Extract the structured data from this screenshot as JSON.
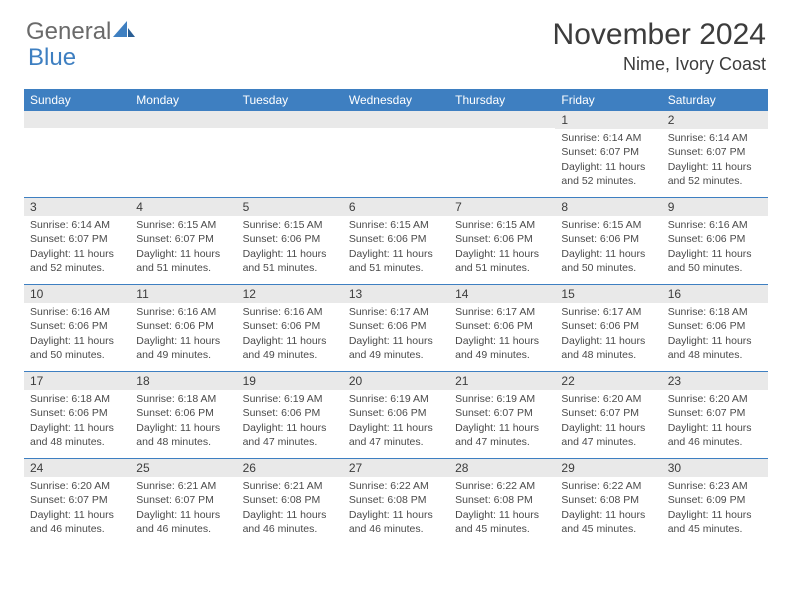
{
  "logo": {
    "text1": "General",
    "text2": "Blue"
  },
  "title": "November 2024",
  "location": "Nime, Ivory Coast",
  "colors": {
    "header_bg": "#3e7fc1",
    "stripe_bg": "#e9e9e9",
    "rule": "#3e7fc1",
    "text": "#4a4a4a"
  },
  "weekdays": [
    "Sunday",
    "Monday",
    "Tuesday",
    "Wednesday",
    "Thursday",
    "Friday",
    "Saturday"
  ],
  "weeks": [
    [
      {
        "n": "",
        "lines": []
      },
      {
        "n": "",
        "lines": []
      },
      {
        "n": "",
        "lines": []
      },
      {
        "n": "",
        "lines": []
      },
      {
        "n": "",
        "lines": []
      },
      {
        "n": "1",
        "lines": [
          "Sunrise: 6:14 AM",
          "Sunset: 6:07 PM",
          "Daylight: 11 hours and 52 minutes."
        ]
      },
      {
        "n": "2",
        "lines": [
          "Sunrise: 6:14 AM",
          "Sunset: 6:07 PM",
          "Daylight: 11 hours and 52 minutes."
        ]
      }
    ],
    [
      {
        "n": "3",
        "lines": [
          "Sunrise: 6:14 AM",
          "Sunset: 6:07 PM",
          "Daylight: 11 hours and 52 minutes."
        ]
      },
      {
        "n": "4",
        "lines": [
          "Sunrise: 6:15 AM",
          "Sunset: 6:07 PM",
          "Daylight: 11 hours and 51 minutes."
        ]
      },
      {
        "n": "5",
        "lines": [
          "Sunrise: 6:15 AM",
          "Sunset: 6:06 PM",
          "Daylight: 11 hours and 51 minutes."
        ]
      },
      {
        "n": "6",
        "lines": [
          "Sunrise: 6:15 AM",
          "Sunset: 6:06 PM",
          "Daylight: 11 hours and 51 minutes."
        ]
      },
      {
        "n": "7",
        "lines": [
          "Sunrise: 6:15 AM",
          "Sunset: 6:06 PM",
          "Daylight: 11 hours and 51 minutes."
        ]
      },
      {
        "n": "8",
        "lines": [
          "Sunrise: 6:15 AM",
          "Sunset: 6:06 PM",
          "Daylight: 11 hours and 50 minutes."
        ]
      },
      {
        "n": "9",
        "lines": [
          "Sunrise: 6:16 AM",
          "Sunset: 6:06 PM",
          "Daylight: 11 hours and 50 minutes."
        ]
      }
    ],
    [
      {
        "n": "10",
        "lines": [
          "Sunrise: 6:16 AM",
          "Sunset: 6:06 PM",
          "Daylight: 11 hours and 50 minutes."
        ]
      },
      {
        "n": "11",
        "lines": [
          "Sunrise: 6:16 AM",
          "Sunset: 6:06 PM",
          "Daylight: 11 hours and 49 minutes."
        ]
      },
      {
        "n": "12",
        "lines": [
          "Sunrise: 6:16 AM",
          "Sunset: 6:06 PM",
          "Daylight: 11 hours and 49 minutes."
        ]
      },
      {
        "n": "13",
        "lines": [
          "Sunrise: 6:17 AM",
          "Sunset: 6:06 PM",
          "Daylight: 11 hours and 49 minutes."
        ]
      },
      {
        "n": "14",
        "lines": [
          "Sunrise: 6:17 AM",
          "Sunset: 6:06 PM",
          "Daylight: 11 hours and 49 minutes."
        ]
      },
      {
        "n": "15",
        "lines": [
          "Sunrise: 6:17 AM",
          "Sunset: 6:06 PM",
          "Daylight: 11 hours and 48 minutes."
        ]
      },
      {
        "n": "16",
        "lines": [
          "Sunrise: 6:18 AM",
          "Sunset: 6:06 PM",
          "Daylight: 11 hours and 48 minutes."
        ]
      }
    ],
    [
      {
        "n": "17",
        "lines": [
          "Sunrise: 6:18 AM",
          "Sunset: 6:06 PM",
          "Daylight: 11 hours and 48 minutes."
        ]
      },
      {
        "n": "18",
        "lines": [
          "Sunrise: 6:18 AM",
          "Sunset: 6:06 PM",
          "Daylight: 11 hours and 48 minutes."
        ]
      },
      {
        "n": "19",
        "lines": [
          "Sunrise: 6:19 AM",
          "Sunset: 6:06 PM",
          "Daylight: 11 hours and 47 minutes."
        ]
      },
      {
        "n": "20",
        "lines": [
          "Sunrise: 6:19 AM",
          "Sunset: 6:06 PM",
          "Daylight: 11 hours and 47 minutes."
        ]
      },
      {
        "n": "21",
        "lines": [
          "Sunrise: 6:19 AM",
          "Sunset: 6:07 PM",
          "Daylight: 11 hours and 47 minutes."
        ]
      },
      {
        "n": "22",
        "lines": [
          "Sunrise: 6:20 AM",
          "Sunset: 6:07 PM",
          "Daylight: 11 hours and 47 minutes."
        ]
      },
      {
        "n": "23",
        "lines": [
          "Sunrise: 6:20 AM",
          "Sunset: 6:07 PM",
          "Daylight: 11 hours and 46 minutes."
        ]
      }
    ],
    [
      {
        "n": "24",
        "lines": [
          "Sunrise: 6:20 AM",
          "Sunset: 6:07 PM",
          "Daylight: 11 hours and 46 minutes."
        ]
      },
      {
        "n": "25",
        "lines": [
          "Sunrise: 6:21 AM",
          "Sunset: 6:07 PM",
          "Daylight: 11 hours and 46 minutes."
        ]
      },
      {
        "n": "26",
        "lines": [
          "Sunrise: 6:21 AM",
          "Sunset: 6:08 PM",
          "Daylight: 11 hours and 46 minutes."
        ]
      },
      {
        "n": "27",
        "lines": [
          "Sunrise: 6:22 AM",
          "Sunset: 6:08 PM",
          "Daylight: 11 hours and 46 minutes."
        ]
      },
      {
        "n": "28",
        "lines": [
          "Sunrise: 6:22 AM",
          "Sunset: 6:08 PM",
          "Daylight: 11 hours and 45 minutes."
        ]
      },
      {
        "n": "29",
        "lines": [
          "Sunrise: 6:22 AM",
          "Sunset: 6:08 PM",
          "Daylight: 11 hours and 45 minutes."
        ]
      },
      {
        "n": "30",
        "lines": [
          "Sunrise: 6:23 AM",
          "Sunset: 6:09 PM",
          "Daylight: 11 hours and 45 minutes."
        ]
      }
    ]
  ]
}
